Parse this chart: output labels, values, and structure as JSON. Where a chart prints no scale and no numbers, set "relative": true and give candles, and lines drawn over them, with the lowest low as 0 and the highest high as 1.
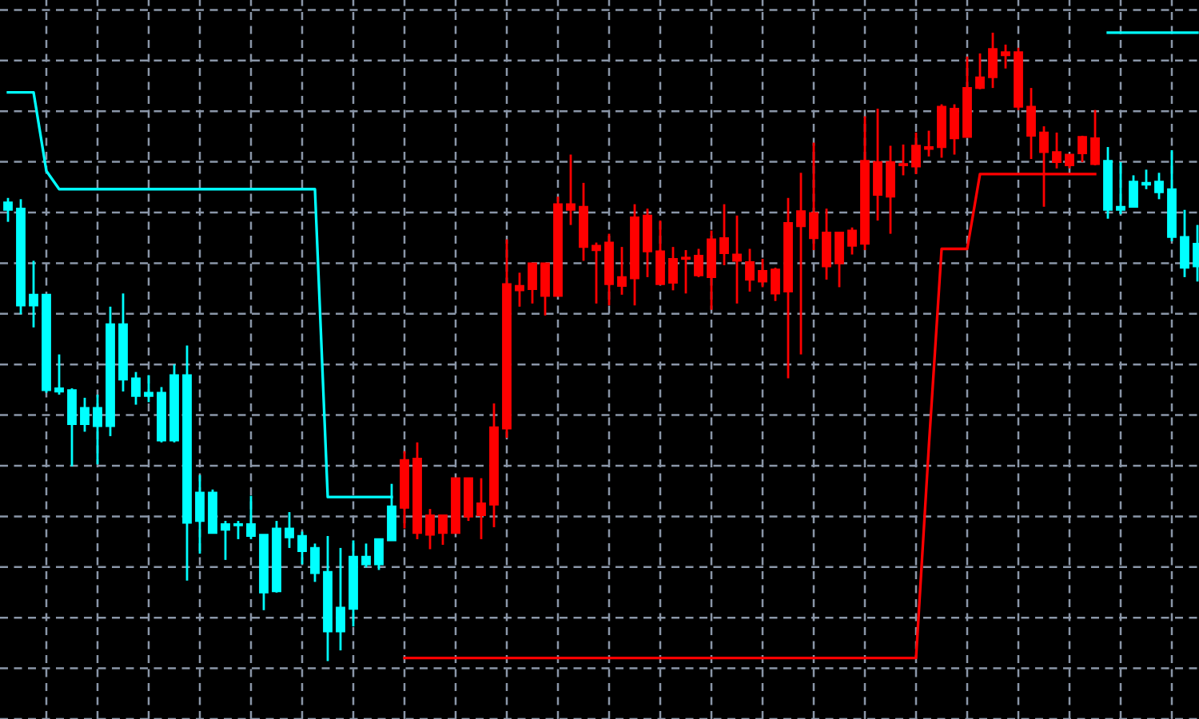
{
  "chart_data": {
    "type": "candlestick",
    "relative": true,
    "grid": true,
    "categories": [
      null,
      null,
      null,
      null,
      null,
      null,
      null,
      null,
      null,
      null,
      null,
      null,
      null,
      null,
      null,
      null,
      null,
      null,
      null,
      null,
      null,
      null,
      null,
      null,
      null,
      null,
      null,
      null,
      null,
      null,
      null,
      null,
      null,
      null,
      null,
      null,
      null,
      null,
      null,
      null,
      null,
      null,
      null,
      null,
      null,
      null,
      null,
      null,
      null,
      null,
      null,
      null,
      null,
      null,
      null,
      null,
      null,
      null,
      null,
      null,
      null,
      null,
      null,
      null,
      null,
      null,
      null,
      null,
      null,
      null,
      null,
      null,
      null,
      null,
      null,
      null,
      null,
      null,
      null,
      null,
      null,
      null,
      null,
      null,
      null,
      null,
      null,
      null,
      null,
      null,
      null,
      null,
      null,
      null
    ],
    "ohlc": [
      [
        0.73,
        0.737,
        0.699,
        0.718
      ],
      [
        0.72,
        0.735,
        0.552,
        0.566
      ],
      [
        0.583,
        0.637,
        0.531,
        0.566
      ],
      [
        0.583,
        0.583,
        0.427,
        0.431
      ],
      [
        0.434,
        0.488,
        0.424,
        0.429
      ],
      [
        0.431,
        0.434,
        0.31,
        0.377
      ],
      [
        0.403,
        0.419,
        0.365,
        0.377
      ],
      [
        0.403,
        0.424,
        0.313,
        0.374
      ],
      [
        0.536,
        0.564,
        0.358,
        0.374
      ],
      [
        0.536,
        0.585,
        0.429,
        0.448
      ],
      [
        0.45,
        0.46,
        0.408,
        0.422
      ],
      [
        0.427,
        0.455,
        0.412,
        0.422
      ],
      [
        0.427,
        0.436,
        0.348,
        0.351
      ],
      [
        0.455,
        0.472,
        0.348,
        0.351
      ],
      [
        0.455,
        0.502,
        0.128,
        0.22
      ],
      [
        0.268,
        0.296,
        0.171,
        0.223
      ],
      [
        0.268,
        0.273,
        0.204,
        0.204
      ],
      [
        0.218,
        0.223,
        0.161,
        0.209
      ],
      [
        0.218,
        0.223,
        0.194,
        0.216
      ],
      [
        0.218,
        0.263,
        0.194,
        0.199
      ],
      [
        0.201,
        0.201,
        0.081,
        0.109
      ],
      [
        0.211,
        0.223,
        0.109,
        0.111
      ],
      [
        0.211,
        0.237,
        0.18,
        0.197
      ],
      [
        0.199,
        0.206,
        0.154,
        0.175
      ],
      [
        0.18,
        0.187,
        0.126,
        0.14
      ],
      [
        0.142,
        0.199,
        0.0,
        0.047
      ],
      [
        0.085,
        0.18,
        0.017,
        0.047
      ],
      [
        0.166,
        0.192,
        0.055,
        0.083
      ],
      [
        0.166,
        0.187,
        0.149,
        0.154
      ],
      [
        0.194,
        0.194,
        0.145,
        0.154
      ],
      [
        0.246,
        0.282,
        0.192,
        0.192
      ],
      [
        0.244,
        0.334,
        0.211,
        0.32
      ],
      [
        0.204,
        0.348,
        0.194,
        0.322
      ],
      [
        0.201,
        0.242,
        0.178,
        0.232
      ],
      [
        0.204,
        0.232,
        0.185,
        0.232
      ],
      [
        0.204,
        0.291,
        0.204,
        0.291
      ],
      [
        0.23,
        0.291,
        0.223,
        0.291
      ],
      [
        0.232,
        0.291,
        0.194,
        0.251
      ],
      [
        0.249,
        0.41,
        0.213,
        0.372
      ],
      [
        0.37,
        0.671,
        0.355,
        0.6
      ],
      [
        0.59,
        0.618,
        0.564,
        0.597
      ],
      [
        0.592,
        0.633,
        0.569,
        0.633
      ],
      [
        0.581,
        0.633,
        0.55,
        0.633
      ],
      [
        0.581,
        0.739,
        0.581,
        0.727
      ],
      [
        0.718,
        0.806,
        0.694,
        0.727
      ],
      [
        0.659,
        0.761,
        0.637,
        0.723
      ],
      [
        0.654,
        0.666,
        0.569,
        0.661
      ],
      [
        0.6,
        0.68,
        0.566,
        0.666
      ],
      [
        0.597,
        0.659,
        0.583,
        0.611
      ],
      [
        0.609,
        0.727,
        0.566,
        0.706
      ],
      [
        0.652,
        0.72,
        0.611,
        0.709
      ],
      [
        0.6,
        0.701,
        0.6,
        0.652
      ],
      [
        0.602,
        0.659,
        0.59,
        0.64
      ],
      [
        0.64,
        0.654,
        0.585,
        0.642
      ],
      [
        0.614,
        0.656,
        0.611,
        0.645
      ],
      [
        0.611,
        0.685,
        0.559,
        0.671
      ],
      [
        0.649,
        0.727,
        0.63,
        0.673
      ],
      [
        0.637,
        0.709,
        0.569,
        0.647
      ],
      [
        0.607,
        0.656,
        0.588,
        0.635
      ],
      [
        0.604,
        0.64,
        0.595,
        0.621
      ],
      [
        0.585,
        0.626,
        0.573,
        0.623
      ],
      [
        0.588,
        0.737,
        0.45,
        0.697
      ],
      [
        0.692,
        0.777,
        0.488,
        0.716
      ],
      [
        0.673,
        0.825,
        0.654,
        0.713
      ],
      [
        0.628,
        0.72,
        0.607,
        0.682
      ],
      [
        0.633,
        0.682,
        0.595,
        0.682
      ],
      [
        0.661,
        0.69,
        0.647,
        0.685
      ],
      [
        0.664,
        0.867,
        0.654,
        0.796
      ],
      [
        0.742,
        0.879,
        0.701,
        0.794
      ],
      [
        0.739,
        0.82,
        0.68,
        0.794
      ],
      [
        0.789,
        0.822,
        0.773,
        0.791
      ],
      [
        0.787,
        0.841,
        0.775,
        0.82
      ],
      [
        0.815,
        0.844,
        0.803,
        0.818
      ],
      [
        0.818,
        0.886,
        0.801,
        0.882
      ],
      [
        0.832,
        0.886,
        0.806,
        0.879
      ],
      [
        0.834,
        0.962,
        0.834,
        0.912
      ],
      [
        0.912,
        0.967,
        0.91,
        0.929
      ],
      [
        0.929,
        1.0,
        0.912,
        0.974
      ],
      [
        0.964,
        0.981,
        0.943,
        0.969
      ],
      [
        0.882,
        0.976,
        0.877,
        0.969
      ],
      [
        0.836,
        0.912,
        0.799,
        0.882
      ],
      [
        0.81,
        0.851,
        0.723,
        0.841
      ],
      [
        0.794,
        0.841,
        0.784,
        0.81
      ],
      [
        0.789,
        0.806,
        0.784,
        0.806
      ],
      [
        0.808,
        0.836,
        0.794,
        0.834
      ],
      [
        0.791,
        0.877,
        0.789,
        0.832
      ],
      [
        0.796,
        0.818,
        0.704,
        0.718
      ],
      [
        0.723,
        0.794,
        0.711,
        0.718
      ],
      [
        0.763,
        0.773,
        0.723,
        0.723
      ],
      [
        0.761,
        0.782,
        0.751,
        0.758
      ],
      [
        0.763,
        0.777,
        0.735,
        0.746
      ],
      [
        0.751,
        0.813,
        0.668,
        0.675
      ],
      [
        0.675,
        0.718,
        0.611,
        0.626
      ],
      [
        0.664,
        0.694,
        0.604,
        0.628
      ]
    ],
    "colors": [
      "#00ffff",
      "#00ffff",
      "#00ffff",
      "#00ffff",
      "#00ffff",
      "#00ffff",
      "#00ffff",
      "#00ffff",
      "#00ffff",
      "#00ffff",
      "#00ffff",
      "#00ffff",
      "#00ffff",
      "#00ffff",
      "#00ffff",
      "#00ffff",
      "#00ffff",
      "#00ffff",
      "#00ffff",
      "#00ffff",
      "#00ffff",
      "#00ffff",
      "#00ffff",
      "#00ffff",
      "#00ffff",
      "#00ffff",
      "#00ffff",
      "#00ffff",
      "#00ffff",
      "#00ffff",
      "#00ffff",
      "#ff0000",
      "#ff0000",
      "#ff0000",
      "#ff0000",
      "#ff0000",
      "#ff0000",
      "#ff0000",
      "#ff0000",
      "#ff0000",
      "#ff0000",
      "#ff0000",
      "#ff0000",
      "#ff0000",
      "#ff0000",
      "#ff0000",
      "#ff0000",
      "#ff0000",
      "#ff0000",
      "#ff0000",
      "#ff0000",
      "#ff0000",
      "#ff0000",
      "#ff0000",
      "#ff0000",
      "#ff0000",
      "#ff0000",
      "#ff0000",
      "#ff0000",
      "#ff0000",
      "#ff0000",
      "#ff0000",
      "#ff0000",
      "#ff0000",
      "#ff0000",
      "#ff0000",
      "#ff0000",
      "#ff0000",
      "#ff0000",
      "#ff0000",
      "#ff0000",
      "#ff0000",
      "#ff0000",
      "#ff0000",
      "#ff0000",
      "#ff0000",
      "#ff0000",
      "#ff0000",
      "#ff0000",
      "#ff0000",
      "#ff0000",
      "#ff0000",
      "#ff0000",
      "#ff0000",
      "#ff0000",
      "#ff0000",
      "#00ffff",
      "#00ffff",
      "#00ffff",
      "#00ffff",
      "#00ffff",
      "#00ffff",
      "#00ffff",
      "#00ffff"
    ],
    "series": [
      {
        "type": "line",
        "color": "#00ffff",
        "values": [
          0.905,
          0.905,
          0.905,
          0.78,
          0.751,
          0.751,
          0.751,
          0.751,
          0.751,
          0.751,
          0.751,
          0.751,
          0.751,
          0.751,
          0.751,
          0.751,
          0.751,
          0.751,
          0.751,
          0.751,
          0.751,
          0.751,
          0.751,
          0.751,
          0.751,
          0.261,
          0.261,
          0.261,
          0.261,
          0.261,
          0.261,
          null,
          null,
          null,
          null,
          null,
          null,
          null,
          null,
          null,
          null,
          null,
          null,
          null,
          null,
          null,
          null,
          null,
          null,
          null,
          null,
          null,
          null,
          null,
          null,
          null,
          null,
          null,
          null,
          null,
          null,
          null,
          null,
          null,
          null,
          null,
          null,
          null,
          null,
          null,
          null,
          null,
          null,
          null,
          null,
          null,
          null,
          null,
          null,
          null,
          null,
          null,
          null,
          null,
          null,
          null,
          null,
          null,
          null,
          null,
          null,
          null,
          null,
          null
        ]
      },
      {
        "type": "line",
        "color": "#ff0000",
        "values": [
          null,
          null,
          null,
          null,
          null,
          null,
          null,
          null,
          null,
          null,
          null,
          null,
          null,
          null,
          null,
          null,
          null,
          null,
          null,
          null,
          null,
          null,
          null,
          null,
          null,
          null,
          null,
          null,
          null,
          null,
          null,
          0.005,
          0.005,
          0.005,
          0.005,
          0.005,
          0.005,
          0.005,
          0.005,
          0.005,
          0.005,
          0.005,
          0.005,
          0.005,
          0.005,
          0.005,
          0.005,
          0.005,
          0.005,
          0.005,
          0.005,
          0.005,
          0.005,
          0.005,
          0.005,
          0.005,
          0.005,
          0.005,
          0.005,
          0.005,
          0.005,
          0.005,
          0.005,
          0.005,
          0.005,
          0.005,
          0.005,
          0.005,
          0.005,
          0.005,
          0.005,
          0.005,
          0.341,
          0.656,
          0.656,
          0.656,
          0.775,
          0.775,
          0.775,
          0.775,
          0.775,
          0.775,
          0.775,
          0.775,
          0.775,
          0.775,
          null,
          null,
          null,
          null,
          null,
          null,
          null,
          null
        ]
      },
      {
        "type": "line",
        "color": "#00ffff",
        "values": [
          null,
          null,
          null,
          null,
          null,
          null,
          null,
          null,
          null,
          null,
          null,
          null,
          null,
          null,
          null,
          null,
          null,
          null,
          null,
          null,
          null,
          null,
          null,
          null,
          null,
          null,
          null,
          null,
          null,
          null,
          null,
          null,
          null,
          null,
          null,
          null,
          null,
          null,
          null,
          null,
          null,
          null,
          null,
          null,
          null,
          null,
          null,
          null,
          null,
          null,
          null,
          null,
          null,
          null,
          null,
          null,
          null,
          null,
          null,
          null,
          null,
          null,
          null,
          null,
          null,
          null,
          null,
          null,
          null,
          null,
          null,
          null,
          null,
          null,
          null,
          null,
          null,
          null,
          null,
          null,
          null,
          null,
          null,
          null,
          null,
          null,
          1.0,
          1.0,
          1.0,
          1.0,
          1.0,
          1.0,
          1.0,
          1.0
        ]
      }
    ]
  }
}
